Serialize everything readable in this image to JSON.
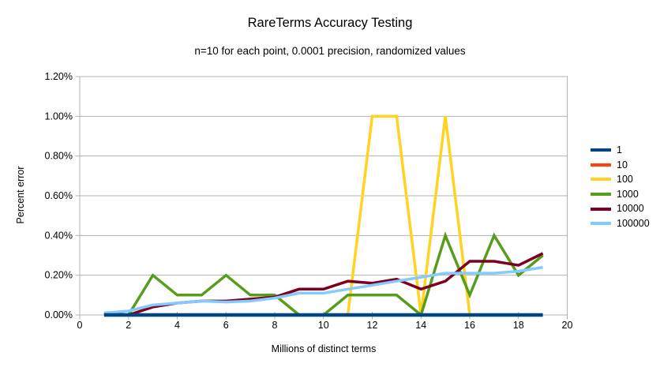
{
  "chart_data": {
    "type": "line",
    "title": "RareTerms Accuracy Testing",
    "subtitle": "n=10 for each point, 0.0001 precision, randomized values",
    "xlabel": "Millions of distinct terms",
    "ylabel": "Percent error",
    "units": "percent error, y values in %",
    "x": [
      1,
      2,
      3,
      4,
      5,
      6,
      7,
      8,
      9,
      10,
      11,
      12,
      13,
      14,
      15,
      16,
      17,
      18,
      19
    ],
    "series": [
      {
        "name": "1",
        "color": "#004586",
        "values": [
          0,
          0,
          0,
          0,
          0,
          0,
          0,
          0,
          0,
          0,
          0,
          0,
          0,
          0,
          0,
          0,
          0,
          0,
          0
        ]
      },
      {
        "name": "10",
        "color": "#ff420e",
        "values": [
          0,
          0,
          0,
          0,
          0,
          0,
          0,
          0,
          0,
          0,
          0,
          0,
          0,
          0,
          0,
          0,
          0,
          0,
          0
        ]
      },
      {
        "name": "100",
        "color": "#ffd320",
        "values": [
          0,
          0,
          0,
          0,
          0,
          0,
          0,
          0,
          0,
          0,
          0,
          1.0,
          1.0,
          0,
          1.0,
          0,
          0,
          0,
          0
        ]
      },
      {
        "name": "1000",
        "color": "#579d1c",
        "values": [
          0,
          0,
          0.2,
          0.1,
          0.1,
          0.2,
          0.1,
          0.1,
          0,
          0,
          0.1,
          0.1,
          0.1,
          0,
          0.4,
          0.1,
          0.4,
          0.2,
          0.3
        ]
      },
      {
        "name": "10000",
        "color": "#7e0021",
        "values": [
          0.01,
          0,
          0.04,
          0.06,
          0.07,
          0.07,
          0.08,
          0.09,
          0.13,
          0.13,
          0.17,
          0.16,
          0.18,
          0.13,
          0.17,
          0.27,
          0.27,
          0.25,
          0.31
        ]
      },
      {
        "name": "100000",
        "color": "#83caff",
        "values": [
          0.01,
          0.02,
          0.05,
          0.06,
          0.07,
          0.065,
          0.07,
          0.085,
          0.11,
          0.11,
          0.13,
          0.15,
          0.17,
          0.19,
          0.21,
          0.21,
          0.21,
          0.22,
          0.24
        ]
      }
    ],
    "xlim": [
      0,
      20
    ],
    "ylim": [
      0,
      1.2
    ],
    "x_ticks": [
      0,
      2,
      4,
      6,
      8,
      10,
      12,
      14,
      16,
      18,
      20
    ],
    "x_tick_labels": [
      "0",
      "2",
      "4",
      "6",
      "8",
      "10",
      "12",
      "14",
      "16",
      "18",
      "20"
    ],
    "y_ticks": [
      0,
      0.2,
      0.4,
      0.6,
      0.8,
      1.0,
      1.2
    ],
    "y_tick_labels": [
      "0.00%",
      "0.20%",
      "0.40%",
      "0.60%",
      "0.80%",
      "1.00%",
      "1.20%"
    ],
    "grid": "horizontal gridlines only",
    "legend_position": "right",
    "legend_entries": [
      "1",
      "10",
      "100",
      "1000",
      "10000",
      "100000"
    ],
    "axis_color": "#b3b3b3",
    "text_color": "#000000",
    "background_color": "#ffffff"
  }
}
